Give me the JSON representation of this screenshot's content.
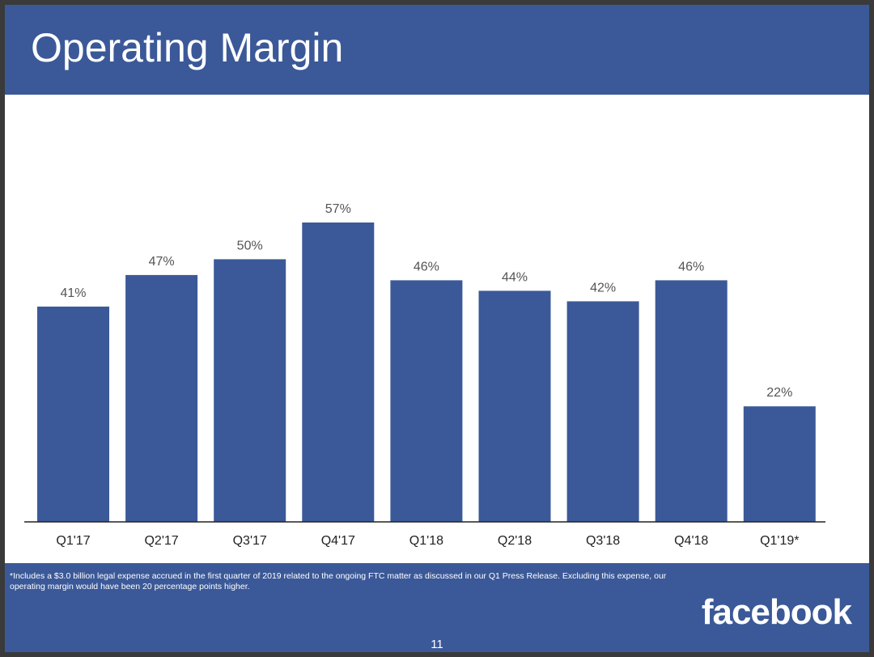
{
  "slide": {
    "title": "Operating Margin",
    "footnote": "*Includes a $3.0 billion legal expense accrued in the first quarter of 2019 related to the ongoing FTC matter as discussed in our Q1 Press Release. Excluding this expense, our operating margin would have been 20 percentage points higher.",
    "brand": "facebook",
    "page_number": "11"
  },
  "colors": {
    "brand_blue": "#3b5998"
  },
  "chart_data": {
    "type": "bar",
    "title": "Operating Margin",
    "categories": [
      "Q1'17",
      "Q2'17",
      "Q3'17",
      "Q4'17",
      "Q1'18",
      "Q2'18",
      "Q3'18",
      "Q4'18",
      "Q1'19*"
    ],
    "values": [
      41,
      47,
      50,
      57,
      46,
      44,
      42,
      46,
      22
    ],
    "value_labels": [
      "41%",
      "47%",
      "50%",
      "57%",
      "46%",
      "44%",
      "42%",
      "46%",
      "22%"
    ],
    "unit": "%",
    "xlabel": "",
    "ylabel": "",
    "ylim": [
      0,
      57
    ],
    "grid": false,
    "legend": "none"
  }
}
